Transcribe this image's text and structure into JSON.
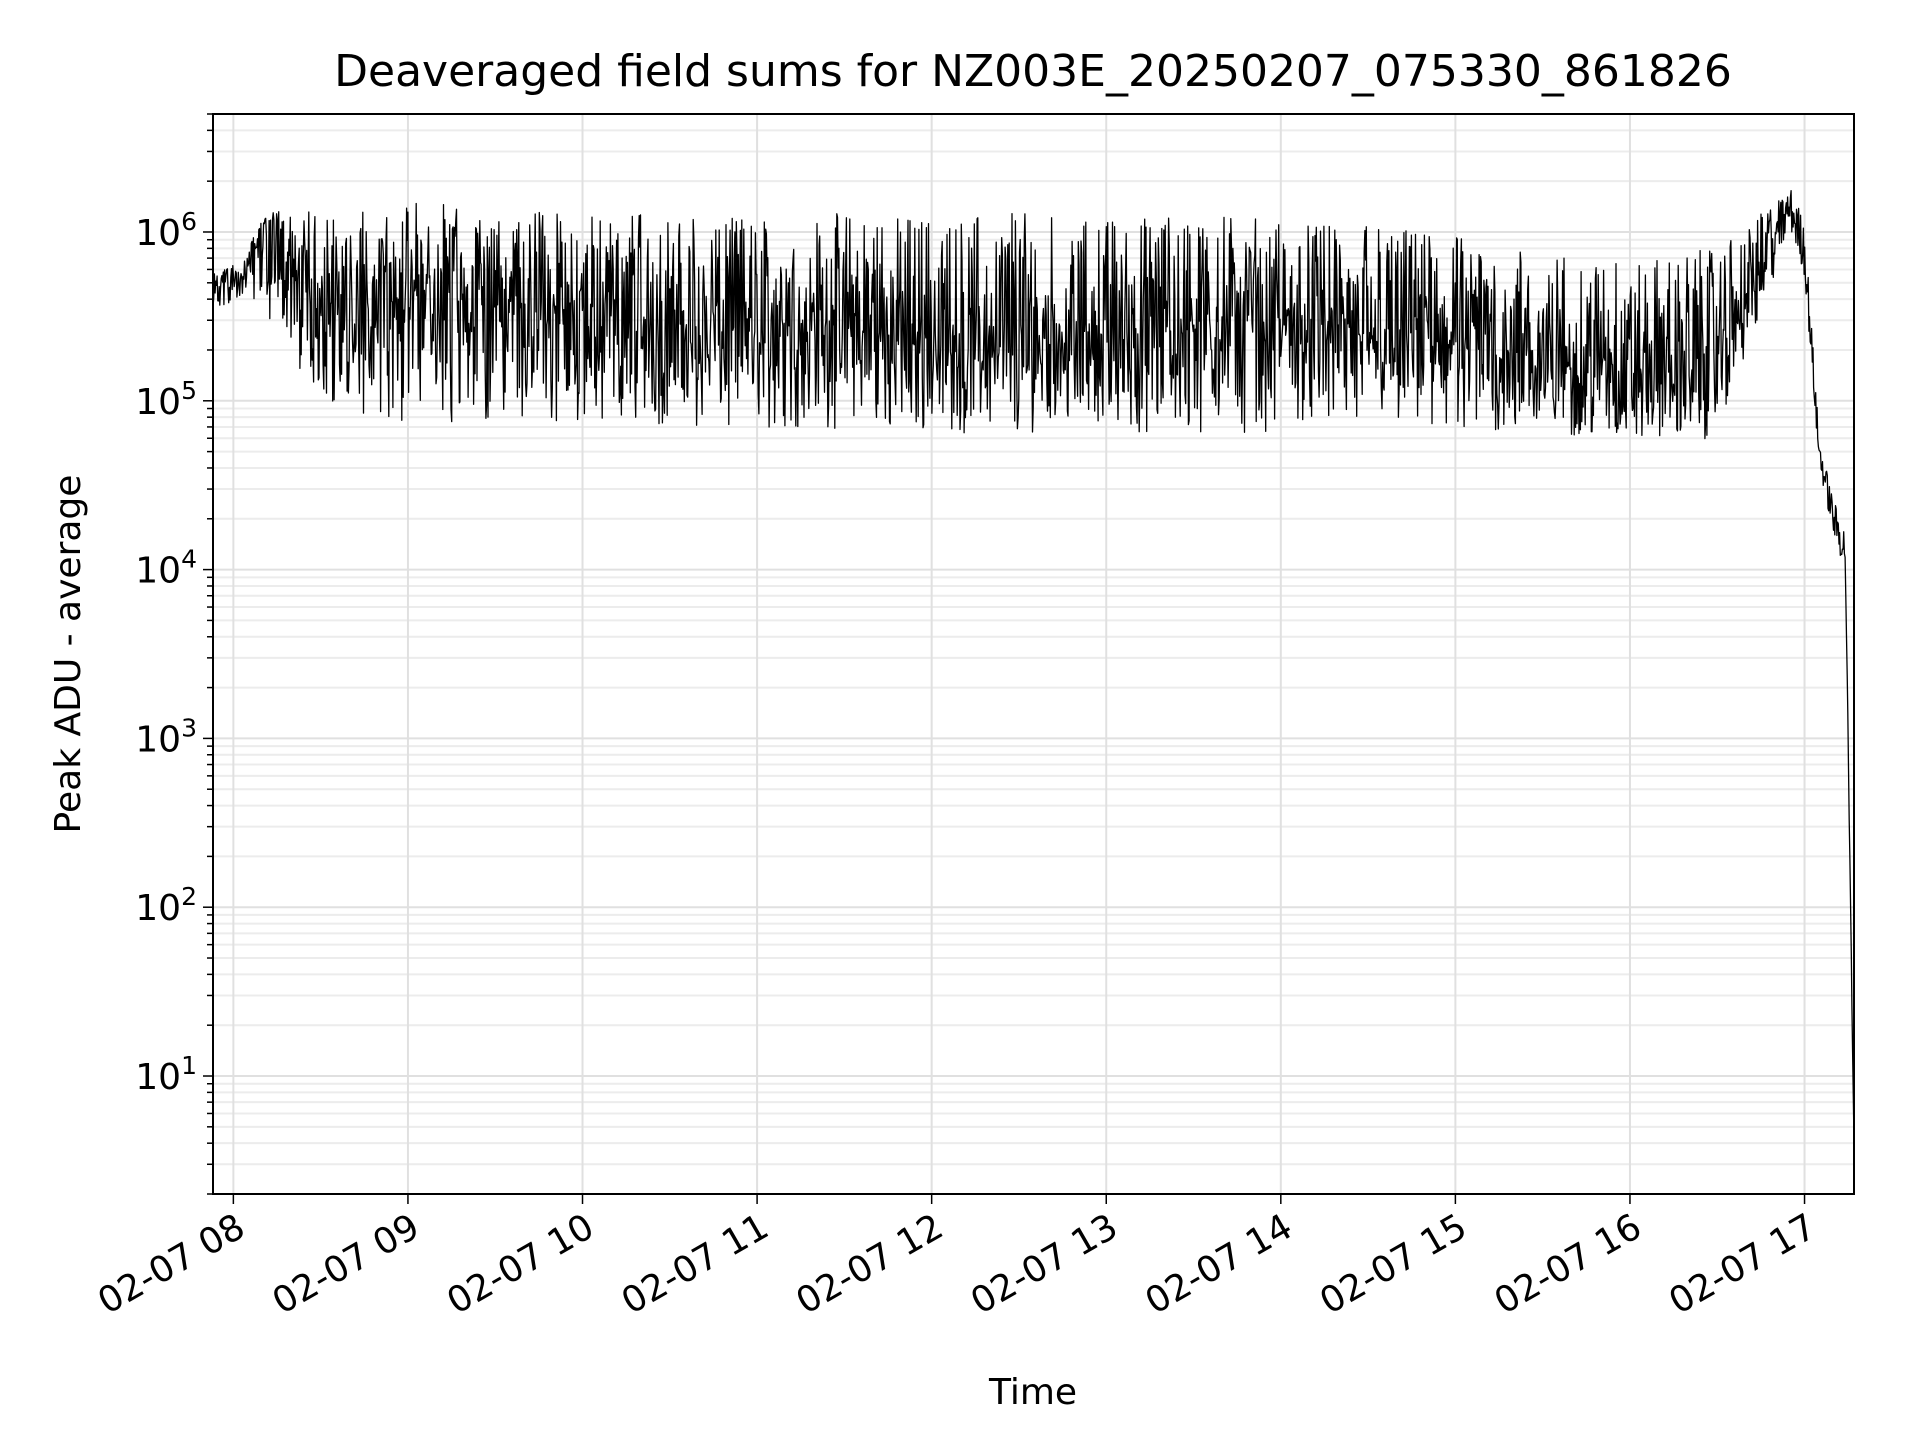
{
  "chart_data": {
    "type": "line",
    "title": "Deaveraged field sums for NZ003E_20250207_075330_861826",
    "xlabel": "Time",
    "ylabel": "Peak ADU - average",
    "yscale": "log",
    "ylim": [
      2,
      5000000
    ],
    "xlim": [
      "2025-02-07 07:53",
      "2025-02-07 17:17"
    ],
    "grid": true,
    "x_tick_labels": [
      "02-07 08",
      "02-07 09",
      "02-07 10",
      "02-07 11",
      "02-07 12",
      "02-07 13",
      "02-07 14",
      "02-07 15",
      "02-07 16",
      "02-07 17"
    ],
    "x_tick_times": [
      "2025-02-07 08:00",
      "2025-02-07 09:00",
      "2025-02-07 10:00",
      "2025-02-07 11:00",
      "2025-02-07 12:00",
      "2025-02-07 13:00",
      "2025-02-07 14:00",
      "2025-02-07 15:00",
      "2025-02-07 16:00",
      "2025-02-07 17:00"
    ],
    "y_ticks": [
      {
        "base": "10",
        "exp": "1",
        "value": 10
      },
      {
        "base": "10",
        "exp": "2",
        "value": 100
      },
      {
        "base": "10",
        "exp": "3",
        "value": 1000
      },
      {
        "base": "10",
        "exp": "4",
        "value": 10000
      },
      {
        "base": "10",
        "exp": "5",
        "value": 100000
      },
      {
        "base": "10",
        "exp": "6",
        "value": 1000000
      }
    ],
    "series": [
      {
        "color": "#000000",
        "x": [
          "2025-02-07 07:53",
          "2025-02-07 08:05",
          "2025-02-07 08:10",
          "2025-02-07 08:30",
          "2025-02-07 09:00",
          "2025-02-07 09:30",
          "2025-02-07 10:00",
          "2025-02-07 10:30",
          "2025-02-07 11:00",
          "2025-02-07 11:30",
          "2025-02-07 12:00",
          "2025-02-07 12:30",
          "2025-02-07 13:00",
          "2025-02-07 13:30",
          "2025-02-07 14:00",
          "2025-02-07 14:30",
          "2025-02-07 15:00",
          "2025-02-07 15:30",
          "2025-02-07 16:00",
          "2025-02-07 16:30",
          "2025-02-07 16:55",
          "2025-02-07 17:00",
          "2025-02-07 17:05",
          "2025-02-07 17:10",
          "2025-02-07 17:14",
          "2025-02-07 17:17"
        ],
        "y": [
          450000,
          550000,
          1100000,
          400000,
          380000,
          350000,
          320000,
          300000,
          280000,
          260000,
          230000,
          250000,
          240000,
          260000,
          280000,
          250000,
          220000,
          160000,
          140000,
          170000,
          1400000,
          800000,
          50000,
          20000,
          13000,
          4
        ],
        "y_band_low": [
          350000,
          400000,
          350000,
          90000,
          70000,
          65000,
          70000,
          70000,
          70000,
          65000,
          60000,
          65000,
          60000,
          65000,
          65000,
          70000,
          70000,
          60000,
          55000,
          60000,
          1000000,
          600000,
          40000,
          15000,
          10000,
          4
        ],
        "y_band_high": [
          600000,
          650000,
          1300000,
          1400000,
          1500000,
          1400000,
          1300000,
          1300000,
          1200000,
          1300000,
          1250000,
          1300000,
          1200000,
          1300000,
          1200000,
          1100000,
          1000000,
          800000,
          700000,
          800000,
          1800000,
          1300000,
          60000,
          25000,
          18000,
          4
        ]
      }
    ]
  }
}
